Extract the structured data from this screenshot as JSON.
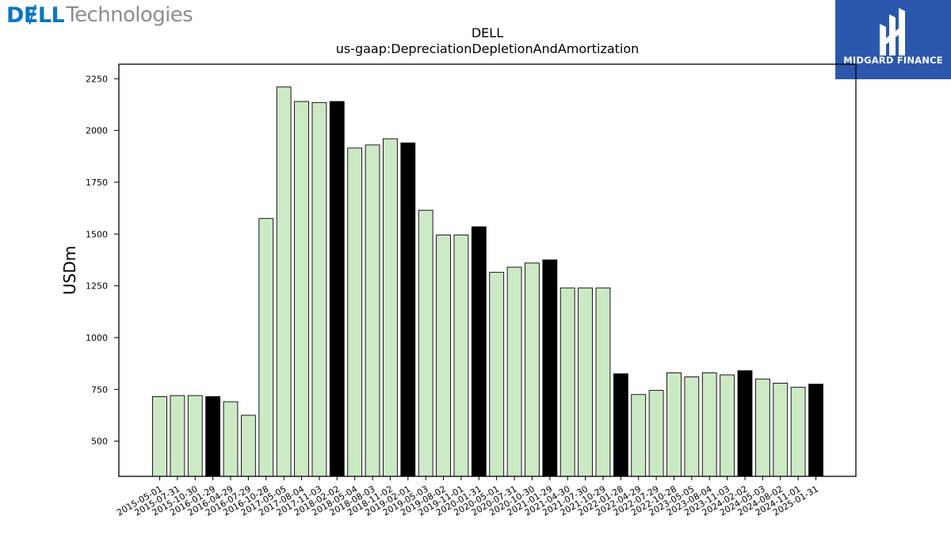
{
  "header": {
    "left_logo": {
      "brand": "DɆLL",
      "brand_sub": "Technologies"
    },
    "right_logo": {
      "name": "MIDGARD FINANCE",
      "background": "#2b58ad"
    }
  },
  "chart_data": {
    "type": "bar",
    "title": "DELL",
    "subtitle": "us-gaap:DepreciationDepletionAndAmortization",
    "xlabel": "",
    "ylabel": "USDm",
    "ylim": [
      330,
      2320
    ],
    "yticks": [
      500,
      750,
      1000,
      1250,
      1500,
      1750,
      2000,
      2250
    ],
    "grid": false,
    "colors": {
      "quarter": "#cce9c5",
      "fiscal_year": "#000000",
      "edge": "#000000"
    },
    "categories": [
      "2015-05-01",
      "2015-07-31",
      "2015-10-30",
      "2016-01-29",
      "2016-04-29",
      "2016-07-29",
      "2016-10-28",
      "2017-05-05",
      "2017-08-04",
      "2017-11-03",
      "2018-02-02",
      "2018-05-04",
      "2018-08-03",
      "2018-11-02",
      "2019-02-01",
      "2019-05-03",
      "2019-08-02",
      "2019-11-01",
      "2020-01-31",
      "2020-05-01",
      "2020-07-31",
      "2020-10-30",
      "2021-01-29",
      "2021-04-30",
      "2021-07-30",
      "2021-10-29",
      "2022-01-28",
      "2022-04-29",
      "2022-07-29",
      "2022-10-28",
      "2023-05-05",
      "2023-08-04",
      "2023-11-03",
      "2024-02-02",
      "2024-05-03",
      "2024-08-02",
      "2024-11-01",
      "2025-01-31"
    ],
    "values": [
      715,
      720,
      720,
      715,
      690,
      625,
      1575,
      2210,
      2140,
      2135,
      2140,
      1915,
      1930,
      1960,
      1940,
      1615,
      1495,
      1495,
      1535,
      1315,
      1340,
      1360,
      1375,
      1240,
      1240,
      1240,
      825,
      725,
      745,
      830,
      810,
      830,
      820,
      840,
      800,
      780,
      760,
      775
    ],
    "highlight": [
      false,
      false,
      false,
      true,
      false,
      false,
      false,
      false,
      false,
      false,
      true,
      false,
      false,
      false,
      true,
      false,
      false,
      false,
      true,
      false,
      false,
      false,
      true,
      false,
      false,
      false,
      true,
      false,
      false,
      false,
      false,
      false,
      false,
      true,
      false,
      false,
      false,
      true
    ]
  }
}
